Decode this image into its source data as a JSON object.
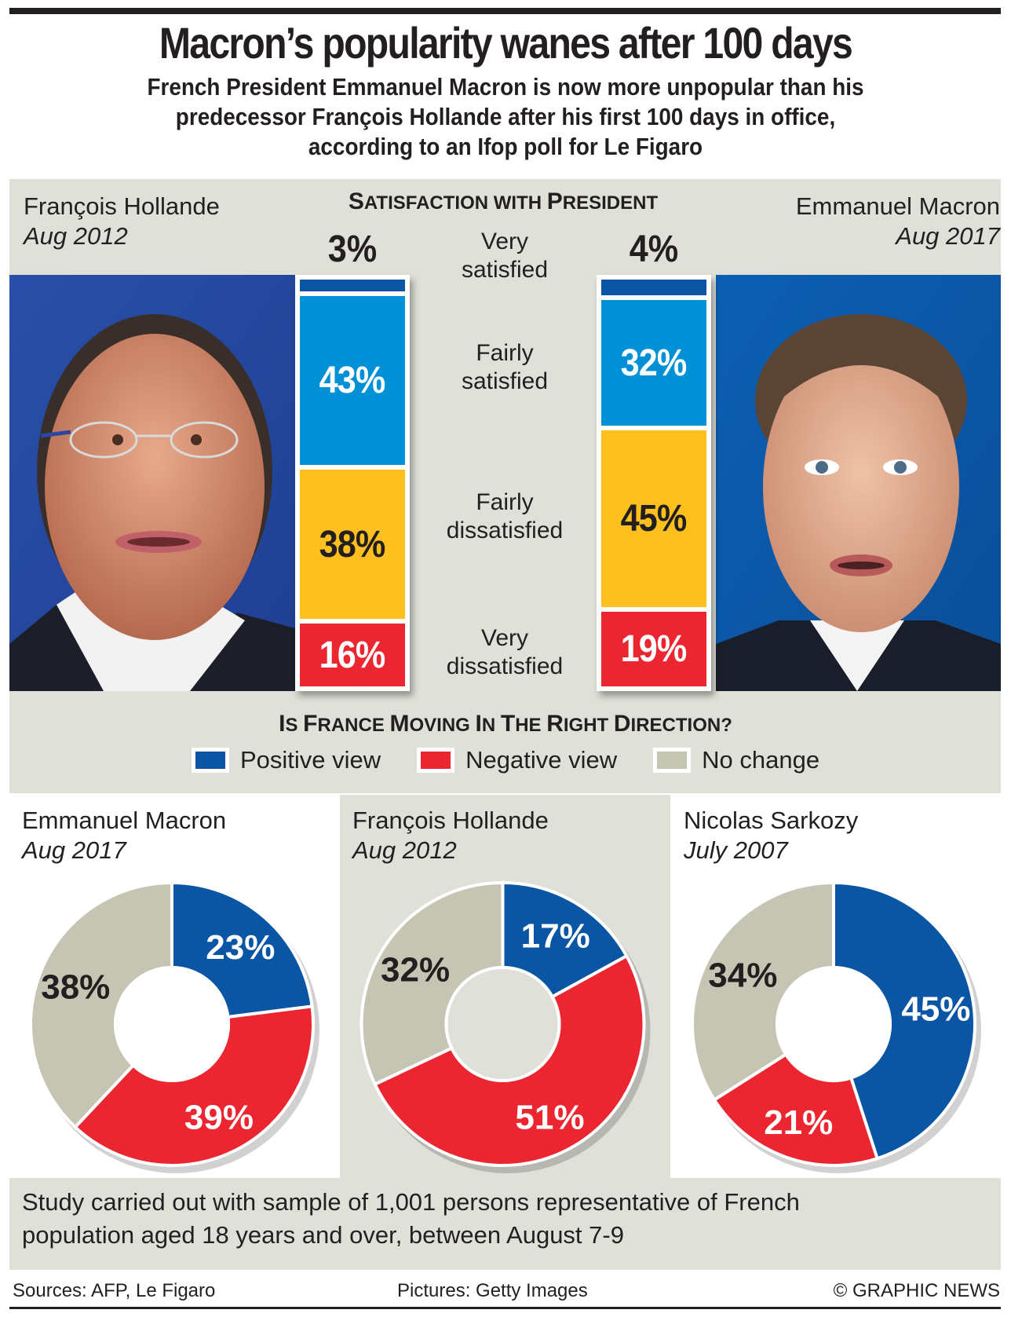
{
  "header": {
    "title": "Macron’s popularity wanes after 100 days",
    "subtitle_lines": [
      "French President Emmanuel Macron is now more unpopular than his",
      "predecessor François Hollande after his first 100 days in office,",
      "according to an Ifop poll for Le Figaro"
    ]
  },
  "colors": {
    "very_satisfied": "#0a56a4",
    "fairly_satisfied": "#0090d6",
    "fairly_dissatisfied": "#fdc01e",
    "very_dissatisfied": "#ec2630",
    "positive": "#0a56a4",
    "negative": "#ec2630",
    "no_change": "#c6c5b4",
    "panel_bg": "#dfe0d8",
    "text": "#231f20"
  },
  "satisfaction": {
    "heading_first": "S",
    "heading_rest": "ATISFACTION WITH ",
    "heading_first2": "P",
    "heading_rest2": "RESIDENT",
    "left": {
      "name": "François Hollande",
      "date": "Aug 2012",
      "photo": "hollande-portrait"
    },
    "right": {
      "name": "Emmanuel Macron",
      "date": "Aug 2017",
      "photo": "macron-portrait"
    },
    "categories": [
      "Very satisfied",
      "Fairly satisfied",
      "Fairly dissatisfied",
      "Very dissatisfied"
    ],
    "category_lines": [
      [
        "Very",
        "satisfied"
      ],
      [
        "Fairly",
        "satisfied"
      ],
      [
        "Fairly",
        "dissatisfied"
      ],
      [
        "Very",
        "dissatisfied"
      ]
    ]
  },
  "direction": {
    "heading": "Is France Moving in the Right Direction?",
    "legend": [
      "Positive view",
      "Negative view",
      "No change"
    ]
  },
  "notes": {
    "lines": [
      "Study carried out with sample of 1,001 persons representative of French",
      "population aged 18 years and over, between August 7-9"
    ]
  },
  "footer": {
    "sources": "Sources: AFP, Le Figaro",
    "pictures": "Pictures: Getty Images",
    "credit": "© GRAPHIC NEWS"
  },
  "chart_data": [
    {
      "type": "bar",
      "stacked": true,
      "title": "Satisfaction with President",
      "categories": [
        "François Hollande Aug 2012",
        "Emmanuel Macron Aug 2017"
      ],
      "series": [
        {
          "name": "Very satisfied",
          "values": [
            3,
            4
          ],
          "labels": [
            "3%",
            "4%"
          ]
        },
        {
          "name": "Fairly satisfied",
          "values": [
            43,
            32
          ],
          "labels": [
            "43%",
            "32%"
          ]
        },
        {
          "name": "Fairly dissatisfied",
          "values": [
            38,
            45
          ],
          "labels": [
            "38%",
            "45%"
          ]
        },
        {
          "name": "Very dissatisfied",
          "values": [
            16,
            19
          ],
          "labels": [
            "16%",
            "19%"
          ]
        }
      ],
      "unit": "%"
    },
    {
      "type": "pie",
      "donut": true,
      "title": "Is France Moving in the Right Direction?",
      "legend": [
        "Positive view",
        "Negative view",
        "No change"
      ],
      "legend_position": "top",
      "charts": [
        {
          "name": "Emmanuel Macron",
          "date": "Aug 2017",
          "values": {
            "Positive view": 23,
            "Negative view": 39,
            "No change": 38
          },
          "labels": [
            "23%",
            "39%",
            "38%"
          ]
        },
        {
          "name": "François Hollande",
          "date": "Aug 2012",
          "values": {
            "Positive view": 17,
            "Negative view": 51,
            "No change": 32
          },
          "labels": [
            "17%",
            "51%",
            "32%"
          ]
        },
        {
          "name": "Nicolas Sarkozy",
          "date": "July 2007",
          "values": {
            "Positive view": 45,
            "Negative view": 21,
            "No change": 34
          },
          "labels": [
            "45%",
            "21%",
            "34%"
          ]
        }
      ]
    }
  ]
}
